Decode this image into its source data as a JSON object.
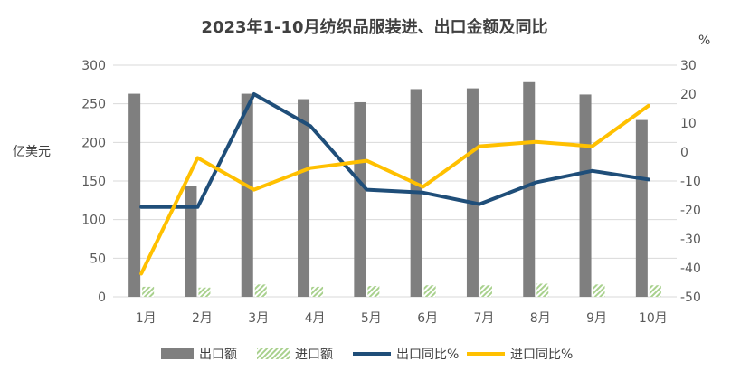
{
  "chart_data": {
    "type": "bar",
    "title": "2023年1-10月纺织品服装进、出口金额及同比",
    "ylabel": "亿美元",
    "y2label": "%",
    "categories": [
      "1月",
      "2月",
      "3月",
      "4月",
      "5月",
      "6月",
      "7月",
      "8月",
      "9月",
      "10月"
    ],
    "ylim": [
      0,
      300
    ],
    "y2lim": [
      -50,
      30
    ],
    "yticks": [
      "0",
      "50",
      "100",
      "150",
      "200",
      "250",
      "300"
    ],
    "y2ticks": [
      "-50",
      "-40",
      "-30",
      "-20",
      "-10",
      "0",
      "10",
      "20",
      "30"
    ],
    "grid": true,
    "legend_position": "bottom",
    "series": [
      {
        "name": "出口额",
        "kind": "bar",
        "axis": "left",
        "color": "#7f7f7f",
        "values": [
          263,
          144,
          263,
          256,
          252,
          269,
          270,
          278,
          262,
          229
        ]
      },
      {
        "name": "进口额",
        "kind": "bar",
        "axis": "left",
        "color": "#a9d18e",
        "values": [
          13,
          12,
          16,
          13,
          14,
          15,
          15,
          17,
          16,
          15
        ]
      },
      {
        "name": "出口同比%",
        "kind": "line",
        "axis": "right",
        "color": "#1f4e79",
        "values": [
          -19,
          -19,
          20,
          9,
          -13,
          -14,
          -18,
          -10.5,
          -6.5,
          -9.5
        ]
      },
      {
        "name": "进口同比%",
        "kind": "line",
        "axis": "right",
        "color": "#ffc000",
        "values": [
          -42,
          -2,
          -13,
          -5.5,
          -3,
          -12,
          2,
          3.5,
          2,
          16
        ]
      }
    ]
  }
}
